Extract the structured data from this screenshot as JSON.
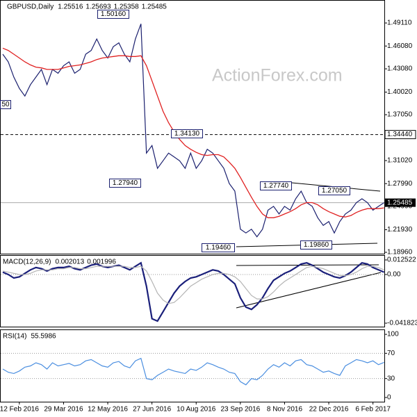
{
  "chart_data": [
    {
      "type": "line",
      "title": "GBPUSD,Daily",
      "quote": [
        1.25516,
        1.25693,
        1.25358,
        1.25485
      ],
      "series": [
        {
          "color": "#1a1f6e",
          "values": [
            1.45,
            1.44,
            1.42,
            1.405,
            1.395,
            1.41,
            1.42,
            1.43,
            1.41,
            1.43,
            1.425,
            1.435,
            1.44,
            1.425,
            1.43,
            1.45,
            1.455,
            1.47,
            1.455,
            1.445,
            1.46,
            1.465,
            1.45,
            1.44,
            1.47,
            1.49,
            1.32,
            1.33,
            1.3,
            1.31,
            1.32,
            1.315,
            1.31,
            1.3,
            1.32,
            1.3,
            1.31,
            1.325,
            1.32,
            1.31,
            1.3,
            1.28,
            1.27,
            1.22,
            1.215,
            1.22,
            1.21,
            1.22,
            1.245,
            1.25,
            1.24,
            1.25,
            1.245,
            1.26,
            1.27,
            1.255,
            1.25,
            1.235,
            1.225,
            1.23,
            1.215,
            1.23,
            1.24,
            1.245,
            1.255,
            1.26,
            1.255,
            1.245,
            1.25,
            1.25485
          ]
        },
        {
          "color": "#e02020",
          "values": [
            1.458,
            1.455,
            1.45,
            1.445,
            1.44,
            1.436,
            1.433,
            1.432,
            1.43,
            1.43,
            1.43,
            1.432,
            1.434,
            1.435,
            1.436,
            1.438,
            1.44,
            1.443,
            1.445,
            1.446,
            1.447,
            1.448,
            1.448,
            1.447,
            1.447,
            1.448,
            1.435,
            1.415,
            1.395,
            1.375,
            1.36,
            1.348,
            1.338,
            1.33,
            1.325,
            1.321,
            1.318,
            1.317,
            1.318,
            1.318,
            1.315,
            1.308,
            1.3,
            1.288,
            1.275,
            1.262,
            1.25,
            1.24,
            1.235,
            1.235,
            1.237,
            1.24,
            1.243,
            1.247,
            1.252,
            1.255,
            1.255,
            1.252,
            1.247,
            1.243,
            1.24,
            1.237,
            1.236,
            1.238,
            1.242,
            1.245,
            1.247,
            1.247,
            1.247,
            1.248
          ]
        }
      ],
      "ylim": [
        1.1878,
        1.5213
      ],
      "yticks": [
        {
          "value": 1.4911,
          "label": "1.49110"
        },
        {
          "value": 1.4608,
          "label": "1.46080"
        },
        {
          "value": 1.4308,
          "label": "1.43080"
        },
        {
          "value": 1.4002,
          "label": "1.40020"
        },
        {
          "value": 1.3705,
          "label": "1.37050"
        },
        {
          "value": 1.3102,
          "label": "1.31020"
        },
        {
          "value": 1.2799,
          "label": "1.27990"
        },
        {
          "value": 1.2499,
          "label": "1.24990"
        },
        {
          "value": 1.2193,
          "label": "1.21930"
        },
        {
          "value": 1.1896,
          "label": "1.18960"
        }
      ],
      "grid": false,
      "level": {
        "value": 1.3444,
        "label": "1.34440"
      },
      "last": {
        "value": 1.25485,
        "label": "1.25485"
      },
      "annotations": [
        "1.50160",
        "1.27940",
        "1.34130",
        "1.19460",
        "1.27740",
        "1.27050",
        "1.19860",
        "50"
      ],
      "watermark": "ActionForex.com"
    },
    {
      "type": "line",
      "title": "MACD(12,26,9)",
      "readout": [
        0.002013,
        0.001996
      ],
      "series": [
        {
          "color": "#1a1f7a",
          "values": [
            0.002,
            0,
            -0.003,
            -0.002,
            0.001,
            0.004,
            0.006,
            0.005,
            0.003,
            0.005,
            0.006,
            0.006,
            0.007,
            0.005,
            0.004,
            0.006,
            0.008,
            0.009,
            0.007,
            0.006,
            0.007,
            0.008,
            0.006,
            0.004,
            0.007,
            0.01,
            -0.01,
            -0.038,
            -0.04,
            -0.032,
            -0.024,
            -0.016,
            -0.01,
            -0.006,
            -0.003,
            -0.002,
            0,
            0.002,
            0.004,
            0.003,
            0,
            -0.004,
            -0.008,
            -0.02,
            -0.028,
            -0.03,
            -0.026,
            -0.02,
            -0.012,
            -0.005,
            -0.002,
            0.001,
            0.003,
            0.006,
            0.009,
            0.01,
            0.008,
            0.005,
            0.002,
            0,
            -0.002,
            -0.003,
            -0.001,
            0.002,
            0.006,
            0.01,
            0.009,
            0.006,
            0.004,
            0.002
          ]
        },
        {
          "color": "#b4b4b4",
          "values": [
            0.003,
            0.002,
            0.001,
            0,
            0,
            0.001,
            0.003,
            0.004,
            0.004,
            0.004,
            0.005,
            0.005,
            0.006,
            0.006,
            0.005,
            0.005,
            0.006,
            0.007,
            0.007,
            0.007,
            0.007,
            0.007,
            0.007,
            0.006,
            0.006,
            0.007,
            0.003,
            -0.006,
            -0.016,
            -0.022,
            -0.025,
            -0.024,
            -0.02,
            -0.015,
            -0.01,
            -0.007,
            -0.004,
            -0.002,
            0,
            0.001,
            0.001,
            0,
            -0.002,
            -0.006,
            -0.012,
            -0.018,
            -0.021,
            -0.021,
            -0.019,
            -0.015,
            -0.01,
            -0.006,
            -0.003,
            0,
            0.003,
            0.006,
            0.007,
            0.006,
            0.005,
            0.003,
            0.001,
            -0.001,
            -0.001,
            0,
            0.002,
            0.005,
            0.007,
            0.007,
            0.006,
            0.004
          ]
        }
      ],
      "ylim": [
        -0.0448,
        0.0167
      ],
      "yticks": [
        0.012522,
        {
          "value": 0,
          "label": "0.00"
        },
        -0.041823
      ],
      "grid": "inner"
    },
    {
      "type": "line",
      "title": "RSI(14)",
      "readout": [
        55.5986
      ],
      "series": [
        {
          "color": "#4a8ee0",
          "values": [
            45,
            40,
            38,
            42,
            48,
            50,
            55,
            52,
            45,
            55,
            50,
            52,
            54,
            50,
            52,
            58,
            60,
            55,
            50,
            48,
            55,
            57,
            50,
            47,
            58,
            62,
            30,
            28,
            35,
            40,
            45,
            42,
            40,
            38,
            45,
            43,
            48,
            55,
            52,
            48,
            45,
            40,
            38,
            25,
            20,
            30,
            28,
            35,
            45,
            52,
            48,
            55,
            50,
            58,
            60,
            52,
            50,
            45,
            40,
            42,
            38,
            35,
            50,
            55,
            60,
            58,
            55,
            58,
            52,
            55.6
          ]
        }
      ],
      "ylim": [
        -6.7,
        107.8
      ],
      "yticks": [
        100,
        70,
        30,
        0
      ],
      "grid": "inner",
      "categories": [
        null,
        null,
        null,
        "12 Feb 2016",
        null,
        null,
        null,
        null,
        null,
        null,
        null,
        "29 Mar 2016",
        null,
        null,
        null,
        null,
        null,
        null,
        null,
        "12 May 2016",
        null,
        null,
        null,
        null,
        null,
        null,
        null,
        "27 Jun 2016",
        null,
        null,
        null,
        null,
        null,
        null,
        null,
        "10 Aug 2016",
        null,
        null,
        null,
        null,
        null,
        null,
        null,
        "23 Sep 2016",
        null,
        null,
        null,
        null,
        null,
        null,
        null,
        "8 Nov 2016",
        null,
        null,
        null,
        null,
        null,
        null,
        null,
        "22 Dec 2016",
        null,
        null,
        null,
        null,
        null,
        null,
        null,
        "6 Feb 2017",
        null,
        null
      ]
    }
  ]
}
